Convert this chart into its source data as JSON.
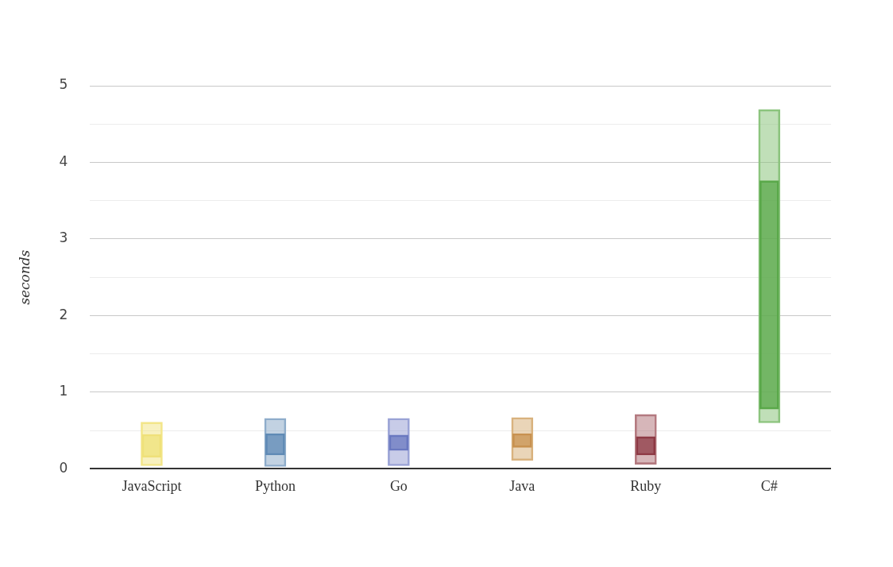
{
  "chart_data": {
    "type": "bar",
    "ylabel": "seconds",
    "categories": [
      "JavaScript",
      "Python",
      "Go",
      "Java",
      "Ruby",
      "C#"
    ],
    "series": [
      {
        "colors": [
          "#f3e68a",
          "#8fadcb",
          "#9aa3d6",
          "#d9b27e",
          "#b47a80",
          "#8cc47e"
        ],
        "base": [
          0.04,
          0.03,
          0.04,
          0.11,
          0.06,
          0.6
        ],
        "values": [
          0.57,
          0.63,
          0.62,
          0.56,
          0.65,
          4.09
        ]
      },
      {
        "colors": [
          "#efe17a",
          "#5f8ab5",
          "#6a78c0",
          "#c89250",
          "#8e3a45",
          "#5aa84a"
        ],
        "base": [
          0.15,
          0.18,
          0.24,
          0.28,
          0.18,
          0.78
        ],
        "values": [
          0.3,
          0.28,
          0.2,
          0.18,
          0.24,
          2.98
        ]
      }
    ],
    "ylim": [
      0,
      5
    ],
    "yticks": [
      0,
      {
        "value": 0.5,
        "label": null
      },
      1,
      {
        "value": 1.5,
        "label": null
      },
      2,
      {
        "value": 2.5,
        "label": null
      },
      3,
      {
        "value": 3.5,
        "label": null
      },
      4,
      {
        "value": 4.5,
        "label": null
      },
      5
    ],
    "grid": "y",
    "legend": false
  }
}
